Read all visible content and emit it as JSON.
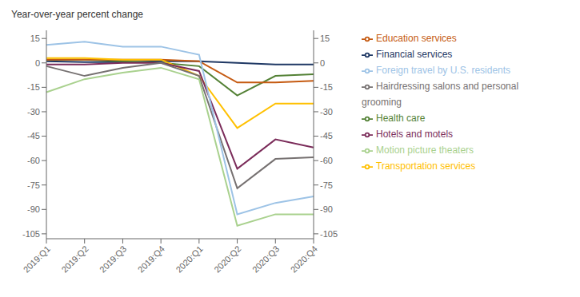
{
  "chart_data": {
    "type": "line",
    "ylabel": "Year-over-year percent change",
    "categories": [
      "2019:Q1",
      "2019:Q2",
      "2019:Q3",
      "2019:Q4",
      "2020:Q1",
      "2020:Q2",
      "2020:Q3",
      "2020:Q4"
    ],
    "series": [
      {
        "name": "Financial services",
        "color": "#1f3864",
        "values": [
          1,
          0.5,
          0.5,
          1,
          1,
          0,
          -1,
          -1
        ]
      },
      {
        "name": "Health care",
        "color": "#538135",
        "values": [
          2,
          2,
          1,
          0,
          -2,
          -20,
          -8,
          -7
        ]
      },
      {
        "name": "Education services",
        "color": "#c55a11",
        "values": [
          2,
          2,
          2,
          2,
          1,
          -12,
          -12,
          -11
        ]
      },
      {
        "name": "Transportation services",
        "color": "#ffc000",
        "values": [
          3,
          3,
          2,
          2,
          -8,
          -40,
          -25,
          -25
        ]
      },
      {
        "name": "Hotels and motels",
        "color": "#7b2c5a",
        "values": [
          -1,
          -1,
          0,
          0,
          -5,
          -65,
          -47,
          -52
        ]
      },
      {
        "name": "Hairdressing salons and personal grooming",
        "color": "#767171",
        "values": [
          -2,
          -8,
          -3,
          0,
          -8,
          -77,
          -59,
          -58
        ]
      },
      {
        "name": "Foreign travel by U.S. residents",
        "color": "#9dc3e6",
        "values": [
          11,
          13,
          10,
          10,
          5,
          -93,
          -86,
          -82
        ]
      },
      {
        "name": "Motion picture theaters",
        "color": "#a9d18e",
        "values": [
          -18,
          -10,
          -6,
          -3,
          -10,
          -100,
          -93,
          -93
        ]
      }
    ],
    "ylim": [
      -108,
      20
    ],
    "yticks": [
      15,
      0,
      -15,
      -30,
      -45,
      -60,
      -75,
      -90,
      -105
    ],
    "y2lim": [
      -108,
      20
    ],
    "y2ticks": [
      15,
      0,
      -15,
      -30,
      -45,
      -60,
      -75,
      -90,
      -105
    ],
    "grid": false,
    "legend": "right"
  }
}
